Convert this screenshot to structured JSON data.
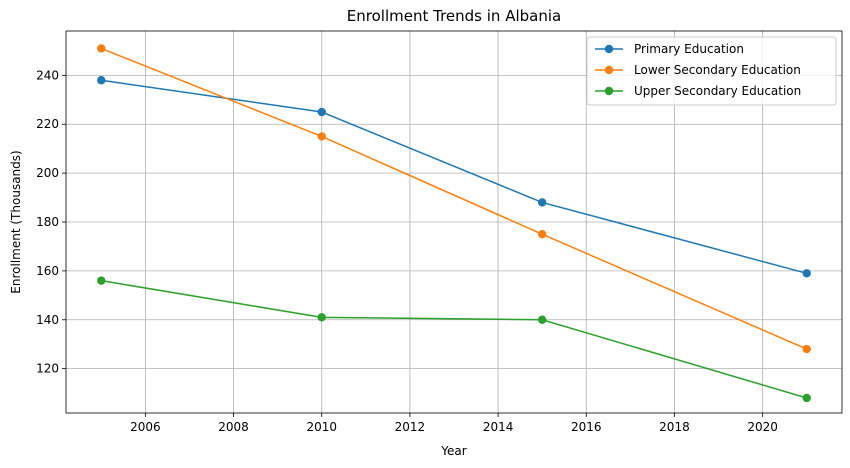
{
  "chart_data": {
    "type": "line",
    "title": "Enrollment Trends in Albania",
    "xlabel": "Year",
    "ylabel": "Enrollment (Thousands)",
    "xlim": [
      2004.2,
      2021.8
    ],
    "ylim": [
      101.85,
      258.15
    ],
    "xticks": [
      2006,
      2008,
      2010,
      2012,
      2014,
      2016,
      2018,
      2020
    ],
    "yticks": [
      120,
      140,
      160,
      180,
      200,
      220,
      240
    ],
    "grid": true,
    "legend_position": "top-right",
    "x": [
      2005,
      2010,
      2015,
      2021
    ],
    "series": [
      {
        "name": "Primary Education",
        "color": "#1f77b4",
        "values": [
          238,
          225,
          188,
          159
        ]
      },
      {
        "name": "Lower Secondary Education",
        "color": "#ff7f0e",
        "values": [
          251,
          215,
          175,
          128
        ]
      },
      {
        "name": "Upper Secondary Education",
        "color": "#2ca02c",
        "values": [
          156,
          141,
          140,
          108
        ]
      }
    ]
  }
}
